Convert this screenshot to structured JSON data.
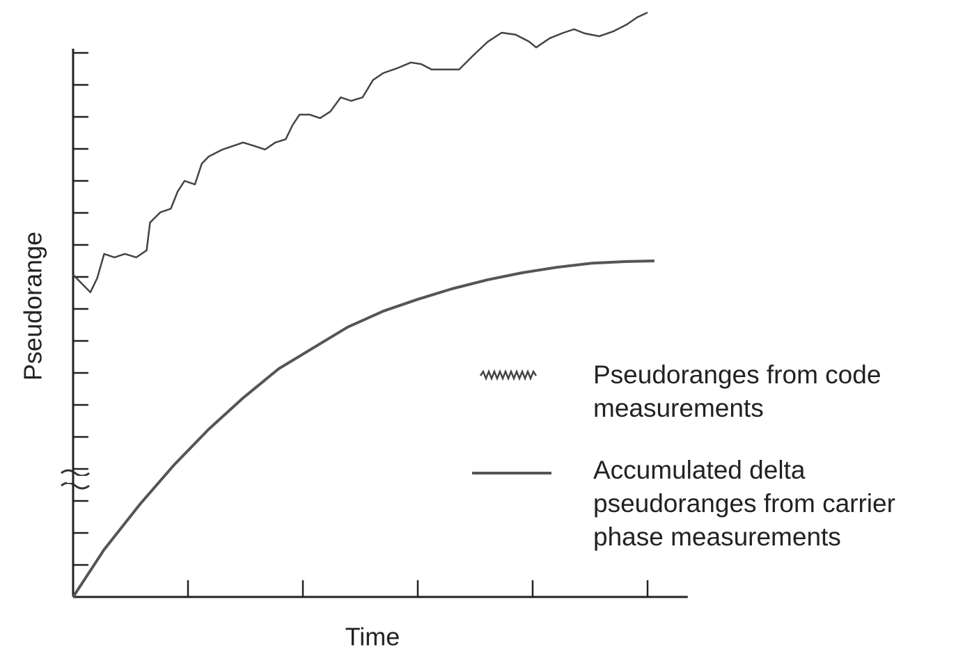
{
  "chart_data": {
    "type": "line",
    "xlabel": "Time",
    "ylabel": "Pseudorange",
    "xlim": [
      0,
      5.35
    ],
    "ylim": [
      0,
      18.6
    ],
    "xticks": [
      1,
      2,
      3,
      4,
      5
    ],
    "yticks": [
      1,
      2,
      3,
      4,
      5,
      6,
      7,
      8,
      9,
      10,
      11,
      12,
      13,
      14,
      15,
      16,
      17
    ],
    "series": [
      {
        "name": "Pseudoranges from code measurements",
        "color": "#444",
        "x": [
          0,
          0.09,
          0.15,
          0.21,
          0.27,
          0.36,
          0.45,
          0.55,
          0.64,
          0.67,
          0.76,
          0.85,
          0.91,
          0.97,
          1.06,
          1.12,
          1.18,
          1.3,
          1.39,
          1.48,
          1.58,
          1.67,
          1.76,
          1.85,
          1.91,
          1.97,
          2.06,
          2.15,
          2.24,
          2.33,
          2.42,
          2.52,
          2.61,
          2.7,
          2.82,
          2.94,
          3.03,
          3.12,
          3.24,
          3.36,
          3.48,
          3.61,
          3.73,
          3.85,
          3.97,
          4.03,
          4.15,
          4.27,
          4.36,
          4.45,
          4.58,
          4.7,
          4.82,
          4.91,
          5.0
        ],
        "values": [
          10.07,
          9.74,
          9.52,
          9.96,
          10.72,
          10.61,
          10.72,
          10.61,
          10.83,
          11.7,
          12.02,
          12.13,
          12.67,
          13.0,
          12.89,
          13.54,
          13.76,
          13.98,
          14.09,
          14.2,
          14.09,
          13.98,
          14.2,
          14.3,
          14.74,
          15.07,
          15.07,
          14.96,
          15.17,
          15.61,
          15.5,
          15.61,
          16.15,
          16.37,
          16.52,
          16.7,
          16.65,
          16.48,
          16.48,
          16.48,
          16.91,
          17.35,
          17.63,
          17.57,
          17.35,
          17.17,
          17.46,
          17.63,
          17.74,
          17.61,
          17.52,
          17.67,
          17.89,
          18.11,
          18.26
        ]
      },
      {
        "name": "Accumulated delta pseudoranges from carrier phase measurements",
        "color": "#555",
        "x": [
          0,
          0.27,
          0.58,
          0.88,
          1.18,
          1.48,
          1.79,
          2.09,
          2.39,
          2.7,
          3.0,
          3.3,
          3.61,
          3.91,
          4.21,
          4.52,
          4.82,
          5.06
        ],
        "values": [
          0,
          1.48,
          2.89,
          4.13,
          5.24,
          6.22,
          7.13,
          7.78,
          8.43,
          8.93,
          9.3,
          9.63,
          9.91,
          10.13,
          10.3,
          10.43,
          10.48,
          10.5
        ]
      }
    ]
  }
}
